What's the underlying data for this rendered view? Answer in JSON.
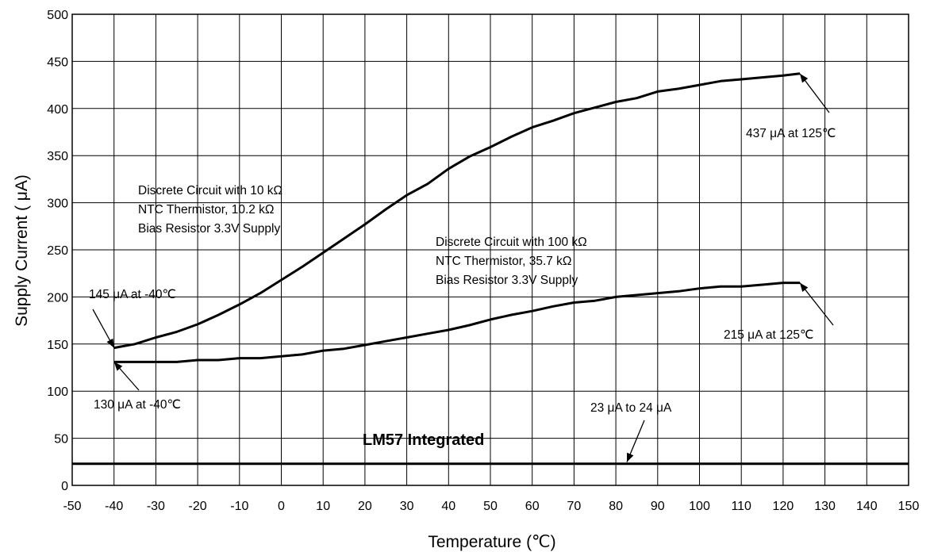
{
  "chart_data": {
    "type": "line",
    "title": "",
    "xlabel": "Temperature (℃)",
    "ylabel": "Supply Current ( μA)",
    "xlim": [
      -50,
      150
    ],
    "ylim": [
      0,
      500
    ],
    "x_ticks": [
      -50,
      -40,
      -30,
      -20,
      -10,
      0,
      10,
      20,
      30,
      40,
      50,
      60,
      70,
      80,
      90,
      100,
      110,
      120,
      130,
      140,
      150
    ],
    "y_ticks": [
      0,
      50,
      100,
      150,
      200,
      250,
      300,
      350,
      400,
      450,
      500
    ],
    "grid": true,
    "legend": "none",
    "line_color": "#000000",
    "series": [
      {
        "x": [
          -40,
          -35,
          -30,
          -25,
          -20,
          -15,
          -10,
          -5,
          0,
          5,
          10,
          15,
          20,
          25,
          30,
          35,
          40,
          45,
          50,
          55,
          60,
          65,
          70,
          75,
          80,
          85,
          90,
          95,
          100,
          105,
          110,
          115,
          120,
          124
        ],
        "values": [
          146,
          150,
          157,
          163,
          171,
          181,
          192,
          204,
          218,
          232,
          247,
          262,
          277,
          293,
          308,
          320,
          336,
          349,
          359,
          370,
          380,
          387,
          395,
          401,
          407,
          411,
          418,
          421,
          425,
          429,
          431,
          433,
          435,
          437
        ]
      },
      {
        "x": [
          -40,
          -35,
          -30,
          -25,
          -20,
          -15,
          -10,
          -5,
          0,
          5,
          10,
          15,
          20,
          25,
          30,
          35,
          40,
          45,
          50,
          55,
          60,
          65,
          70,
          75,
          80,
          85,
          90,
          95,
          100,
          105,
          110,
          115,
          120,
          124
        ],
        "values": [
          131,
          131,
          131,
          131,
          133,
          133,
          135,
          135,
          137,
          139,
          143,
          145,
          149,
          153,
          157,
          161,
          165,
          170,
          176,
          181,
          185,
          190,
          194,
          196,
          200,
          202,
          204,
          206,
          209,
          211,
          211,
          213,
          215,
          215
        ]
      },
      {
        "x": [
          -50,
          150
        ],
        "values": [
          23,
          23
        ]
      }
    ],
    "annotations": {
      "peak_top": "437 μA at 125℃",
      "top_curve_line1": "Discrete Circuit with 10 kΩ",
      "top_curve_line2": "NTC Thermistor, 10.2 kΩ",
      "top_curve_line3": "Bias Resistor 3.3V Supply",
      "mid_curve_line1": "Discrete Circuit with 100 kΩ",
      "mid_curve_line2": "NTC Thermistor, 35.7 kΩ",
      "mid_curve_line3": "Bias Resistor 3.3V Supply",
      "start_top": "145 μA at -40℃",
      "end_mid": "215 μA at 125℃",
      "start_mid": "130 μA at -40℃",
      "lm57_range": "23 μA to 24 μA",
      "lm57_label": "LM57 Integrated"
    }
  }
}
